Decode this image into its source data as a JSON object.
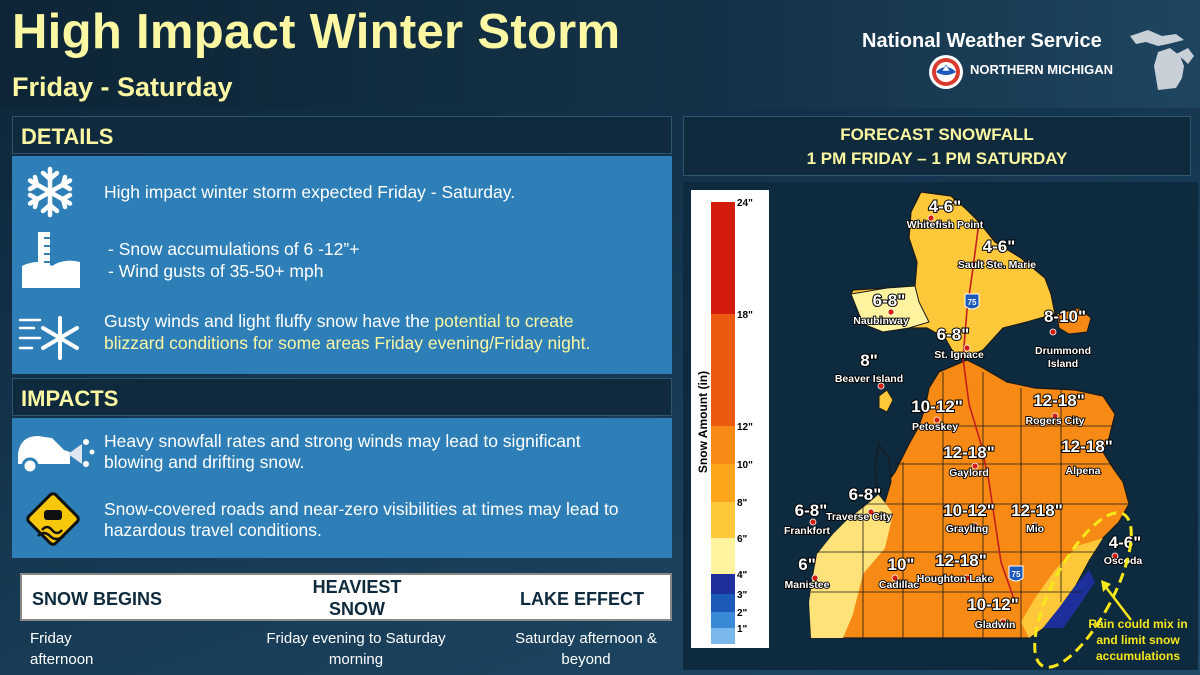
{
  "header": {
    "title": "High Impact Winter Storm",
    "subtitle": "Friday - Saturday",
    "agency": "National Weather Service",
    "office": "NORTHERN MICHIGAN"
  },
  "details": {
    "heading": "DETAILS",
    "line1": "High impact winter storm expected Friday - Saturday.",
    "bullet1": "-  Snow accumulations of 6 -12”+",
    "bullet2": "-  Wind gusts of 35-50+ mph",
    "wind_text_plain": "Gusty winds and light fluffy snow have the ",
    "wind_text_hl": "potential to create",
    "wind_text_hl2": "blizzard conditions for some areas Friday evening/Friday night."
  },
  "impacts": {
    "heading": "IMPACTS",
    "line1a": "Heavy snowfall rates and strong winds may lead to significant",
    "line1b": "blowing and drifting snow.",
    "line2a": "Snow-covered roads and near-zero visibilities at times may lead to",
    "line2b": "hazardous travel conditions."
  },
  "timeline": {
    "begins_label": "SNOW BEGINS",
    "heaviest_label_1": "HEAVIEST",
    "heaviest_label_2": "SNOW",
    "lake_label": "LAKE EFFECT",
    "begins_val_1": "Friday",
    "begins_val_2": "afternoon",
    "heaviest_val_1": "Friday evening to Saturday",
    "heaviest_val_2": "morning",
    "lake_val_1": "Saturday afternoon &",
    "lake_val_2": "beyond"
  },
  "map": {
    "title_1": "FORECAST SNOWFALL",
    "title_2": "1 PM FRIDAY – 1 PM SATURDAY",
    "legend_title": "Snow Amount (in)",
    "legend_ticks": [
      "24\"",
      "18\"",
      "12\"",
      "10\"",
      "8\"",
      "6\"",
      "4\"",
      "3\"",
      "2\"",
      "1\""
    ],
    "legend_colors": [
      "#d41c0c",
      "#ec5a12",
      "#f78a14",
      "#ffa51c",
      "#ffc83a",
      "#fff3a0",
      "#1c2f9a",
      "#1c59b8",
      "#3a8ad8",
      "#7ab8ec"
    ],
    "amounts": [
      {
        "text": "4-6\"",
        "city": "Whitefish Point"
      },
      {
        "text": "4-6\"",
        "city": "Sault Ste. Marie"
      },
      {
        "text": "6-8\"",
        "city": "Naubinway"
      },
      {
        "text": "6-8\"",
        "city": "St. Ignace"
      },
      {
        "text": "8-10\"",
        "city": "Drummond Island"
      },
      {
        "text": "8\"",
        "city": "Beaver Island"
      },
      {
        "text": "10-12\"",
        "city": "Petoskey"
      },
      {
        "text": "12-18\"",
        "city": "Rogers City"
      },
      {
        "text": "12-18\"",
        "city": "Gaylord"
      },
      {
        "text": "12-18\"",
        "city": "Alpena"
      },
      {
        "text": "6-8\"",
        "city": "Traverse City"
      },
      {
        "text": "6-8\"",
        "city": "Frankfort"
      },
      {
        "text": "10-12\"",
        "city": "Grayling"
      },
      {
        "text": "12-18\"",
        "city": "Mio"
      },
      {
        "text": "4-6\"",
        "city": "Oscoda"
      },
      {
        "text": "6\"",
        "city": "Manistee"
      },
      {
        "text": "10\"",
        "city": "Cadillac"
      },
      {
        "text": "12-18\"",
        "city": "Houghton Lake"
      },
      {
        "text": "10-12\"",
        "city": "Gladwin"
      }
    ],
    "highway_75": "75",
    "note": "Rain could mix in and limit snow accumulations"
  }
}
